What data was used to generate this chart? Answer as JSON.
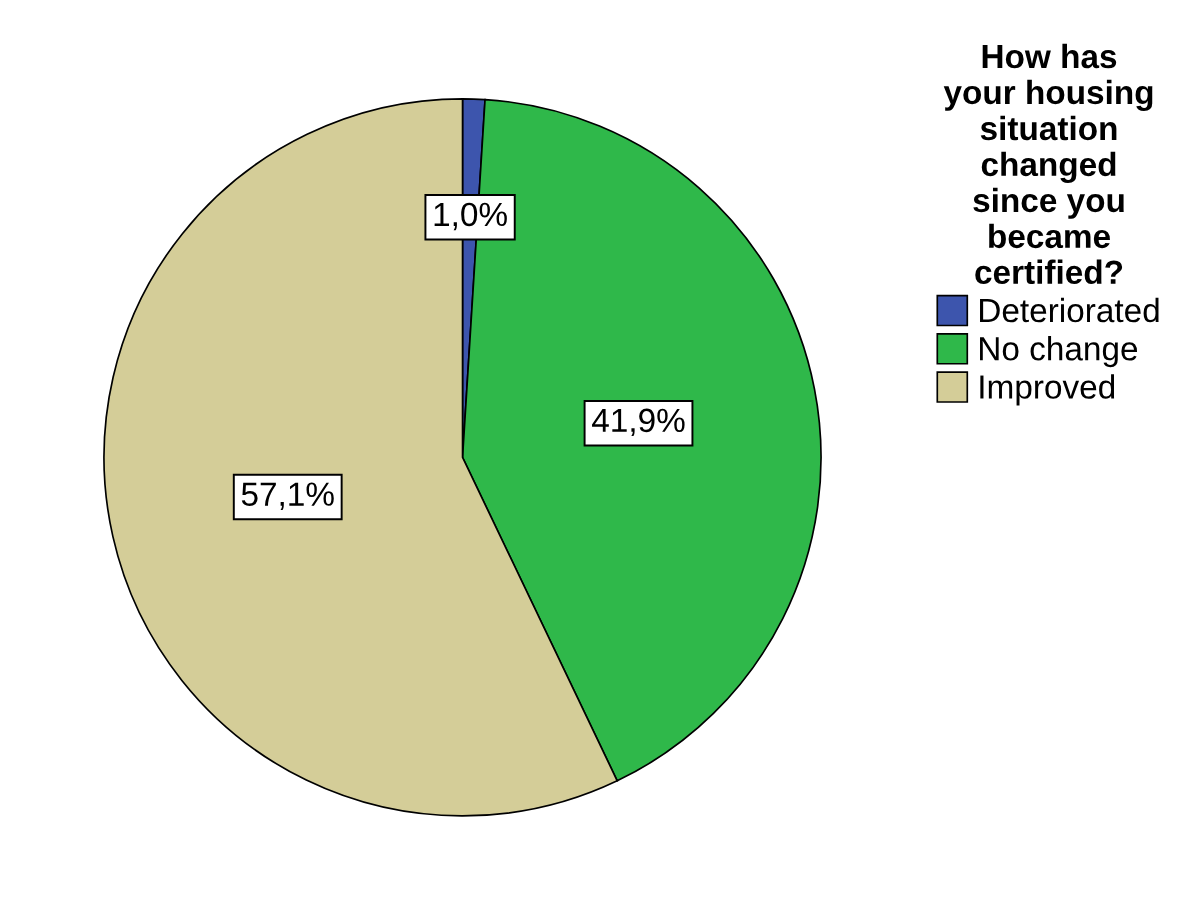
{
  "chart_data": {
    "type": "pie",
    "legend_title": "How has\nyour housing\nsituation\nchanged\nsince you\nbecame\ncertified?",
    "categories": [
      "Deteriorated",
      "No change",
      "Improved"
    ],
    "values": [
      1.0,
      41.9,
      57.1
    ],
    "value_labels": [
      "1,0%",
      "41,9%",
      "57,1%"
    ],
    "colors": [
      "#3d55ad",
      "#2fb84a",
      "#d4cd98"
    ],
    "legend": "right"
  }
}
